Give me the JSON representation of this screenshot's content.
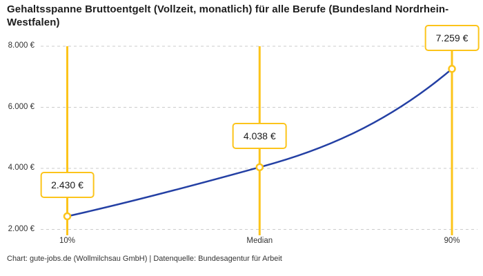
{
  "header": {
    "title": "Gehaltsspanne Bruttoentgelt (Vollzeit, monatlich) für alle Berufe (Bundesland Nordrhein-Westfalen)"
  },
  "footer": {
    "credit": "Chart: gute-jobs.de (Wollmilchsau GmbH) | Datenquelle: Bundesagentur für Arbeit"
  },
  "colors": {
    "accent_yellow": "#fcc41a",
    "line_blue": "#2440a4",
    "grid": "#cbcbcb",
    "text_primary": "#1a1a1a",
    "text_secondary": "#333333",
    "marker_fill": "#ffffff"
  },
  "chart_data": {
    "type": "line",
    "title": "Gehaltsspanne Bruttoentgelt (Vollzeit, monatlich) für alle Berufe (Bundesland Nordrhein-Westfalen)",
    "categories": [
      "10%",
      "Median",
      "90%"
    ],
    "values": [
      2430,
      4038,
      7259
    ],
    "value_labels": [
      "2.430 €",
      "4.038 €",
      "7.259 €"
    ],
    "ylim": [
      2000,
      8000
    ],
    "yticks": {
      "values": [
        2000,
        4000,
        6000,
        8000
      ],
      "labels": [
        "2.000 €",
        "4.000 €",
        "6.000 €",
        "8.000 €"
      ]
    },
    "xlabel": "",
    "ylabel": "",
    "grid": "horizontal-dashed",
    "legend": "none",
    "annotations": "each percentile marked with vertical yellow rule, hollow point and framed value label"
  }
}
